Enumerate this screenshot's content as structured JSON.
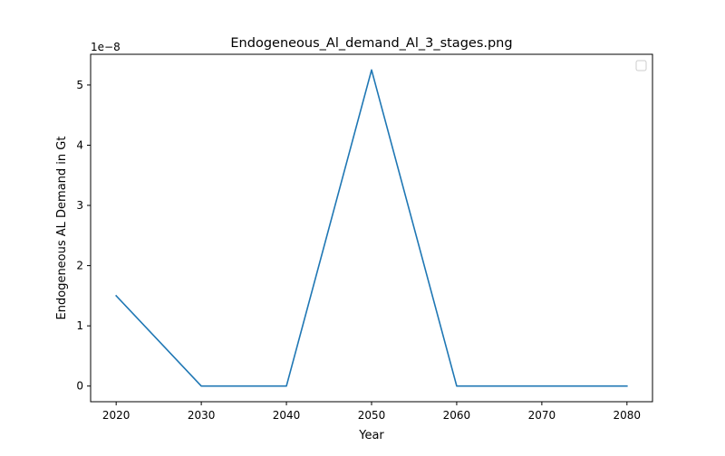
{
  "chart_data": {
    "type": "line",
    "title": "Endogeneous_Al_demand_Al_3_stages.png",
    "xlabel": "Year",
    "ylabel": "Endogeneous AL Demand in Gt",
    "y_offset_label": "1e−8",
    "x": [
      2020,
      2030,
      2040,
      2050,
      2060,
      2070,
      2080
    ],
    "series": [
      {
        "values": [
          1.5e-08,
          0,
          0,
          5.25e-08,
          0,
          0,
          0
        ],
        "color": "#1f77b4"
      }
    ],
    "xlim": [
      2017,
      2083
    ],
    "ylim": [
      -2.6e-09,
      5.51e-08
    ],
    "x_ticks": [
      2020,
      2030,
      2040,
      2050,
      2060,
      2070,
      2080
    ],
    "x_tick_labels": [
      "2020",
      "2030",
      "2040",
      "2050",
      "2060",
      "2070",
      "2080"
    ],
    "y_ticks": [
      0,
      1e-08,
      2e-08,
      3e-08,
      4e-08,
      5e-08
    ],
    "y_tick_labels": [
      "0",
      "1",
      "2",
      "3",
      "4",
      "5"
    ],
    "legend": "top-right",
    "legend_entries": [],
    "grid": false
  }
}
